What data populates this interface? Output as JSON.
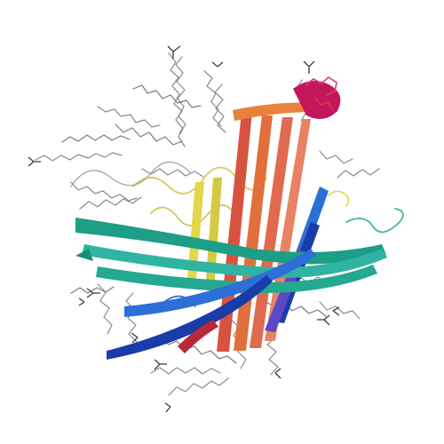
{
  "image": {
    "subject": "protein-ribbon-structure",
    "background": "#ffffff"
  },
  "palette": {
    "lipid": "#808080",
    "lipid_dark": "#404040",
    "n_terminus": "#1a3ca8",
    "blue": "#2c6fd6",
    "cyan": "#2fb3a3",
    "teal": "#1e9e86",
    "green_yellow": "#c6c84a",
    "yellow": "#e2d64a",
    "orange": "#e8813a",
    "red": "#d8533f",
    "c_terminus": "#d83a7a",
    "magenta": "#c2185b"
  }
}
